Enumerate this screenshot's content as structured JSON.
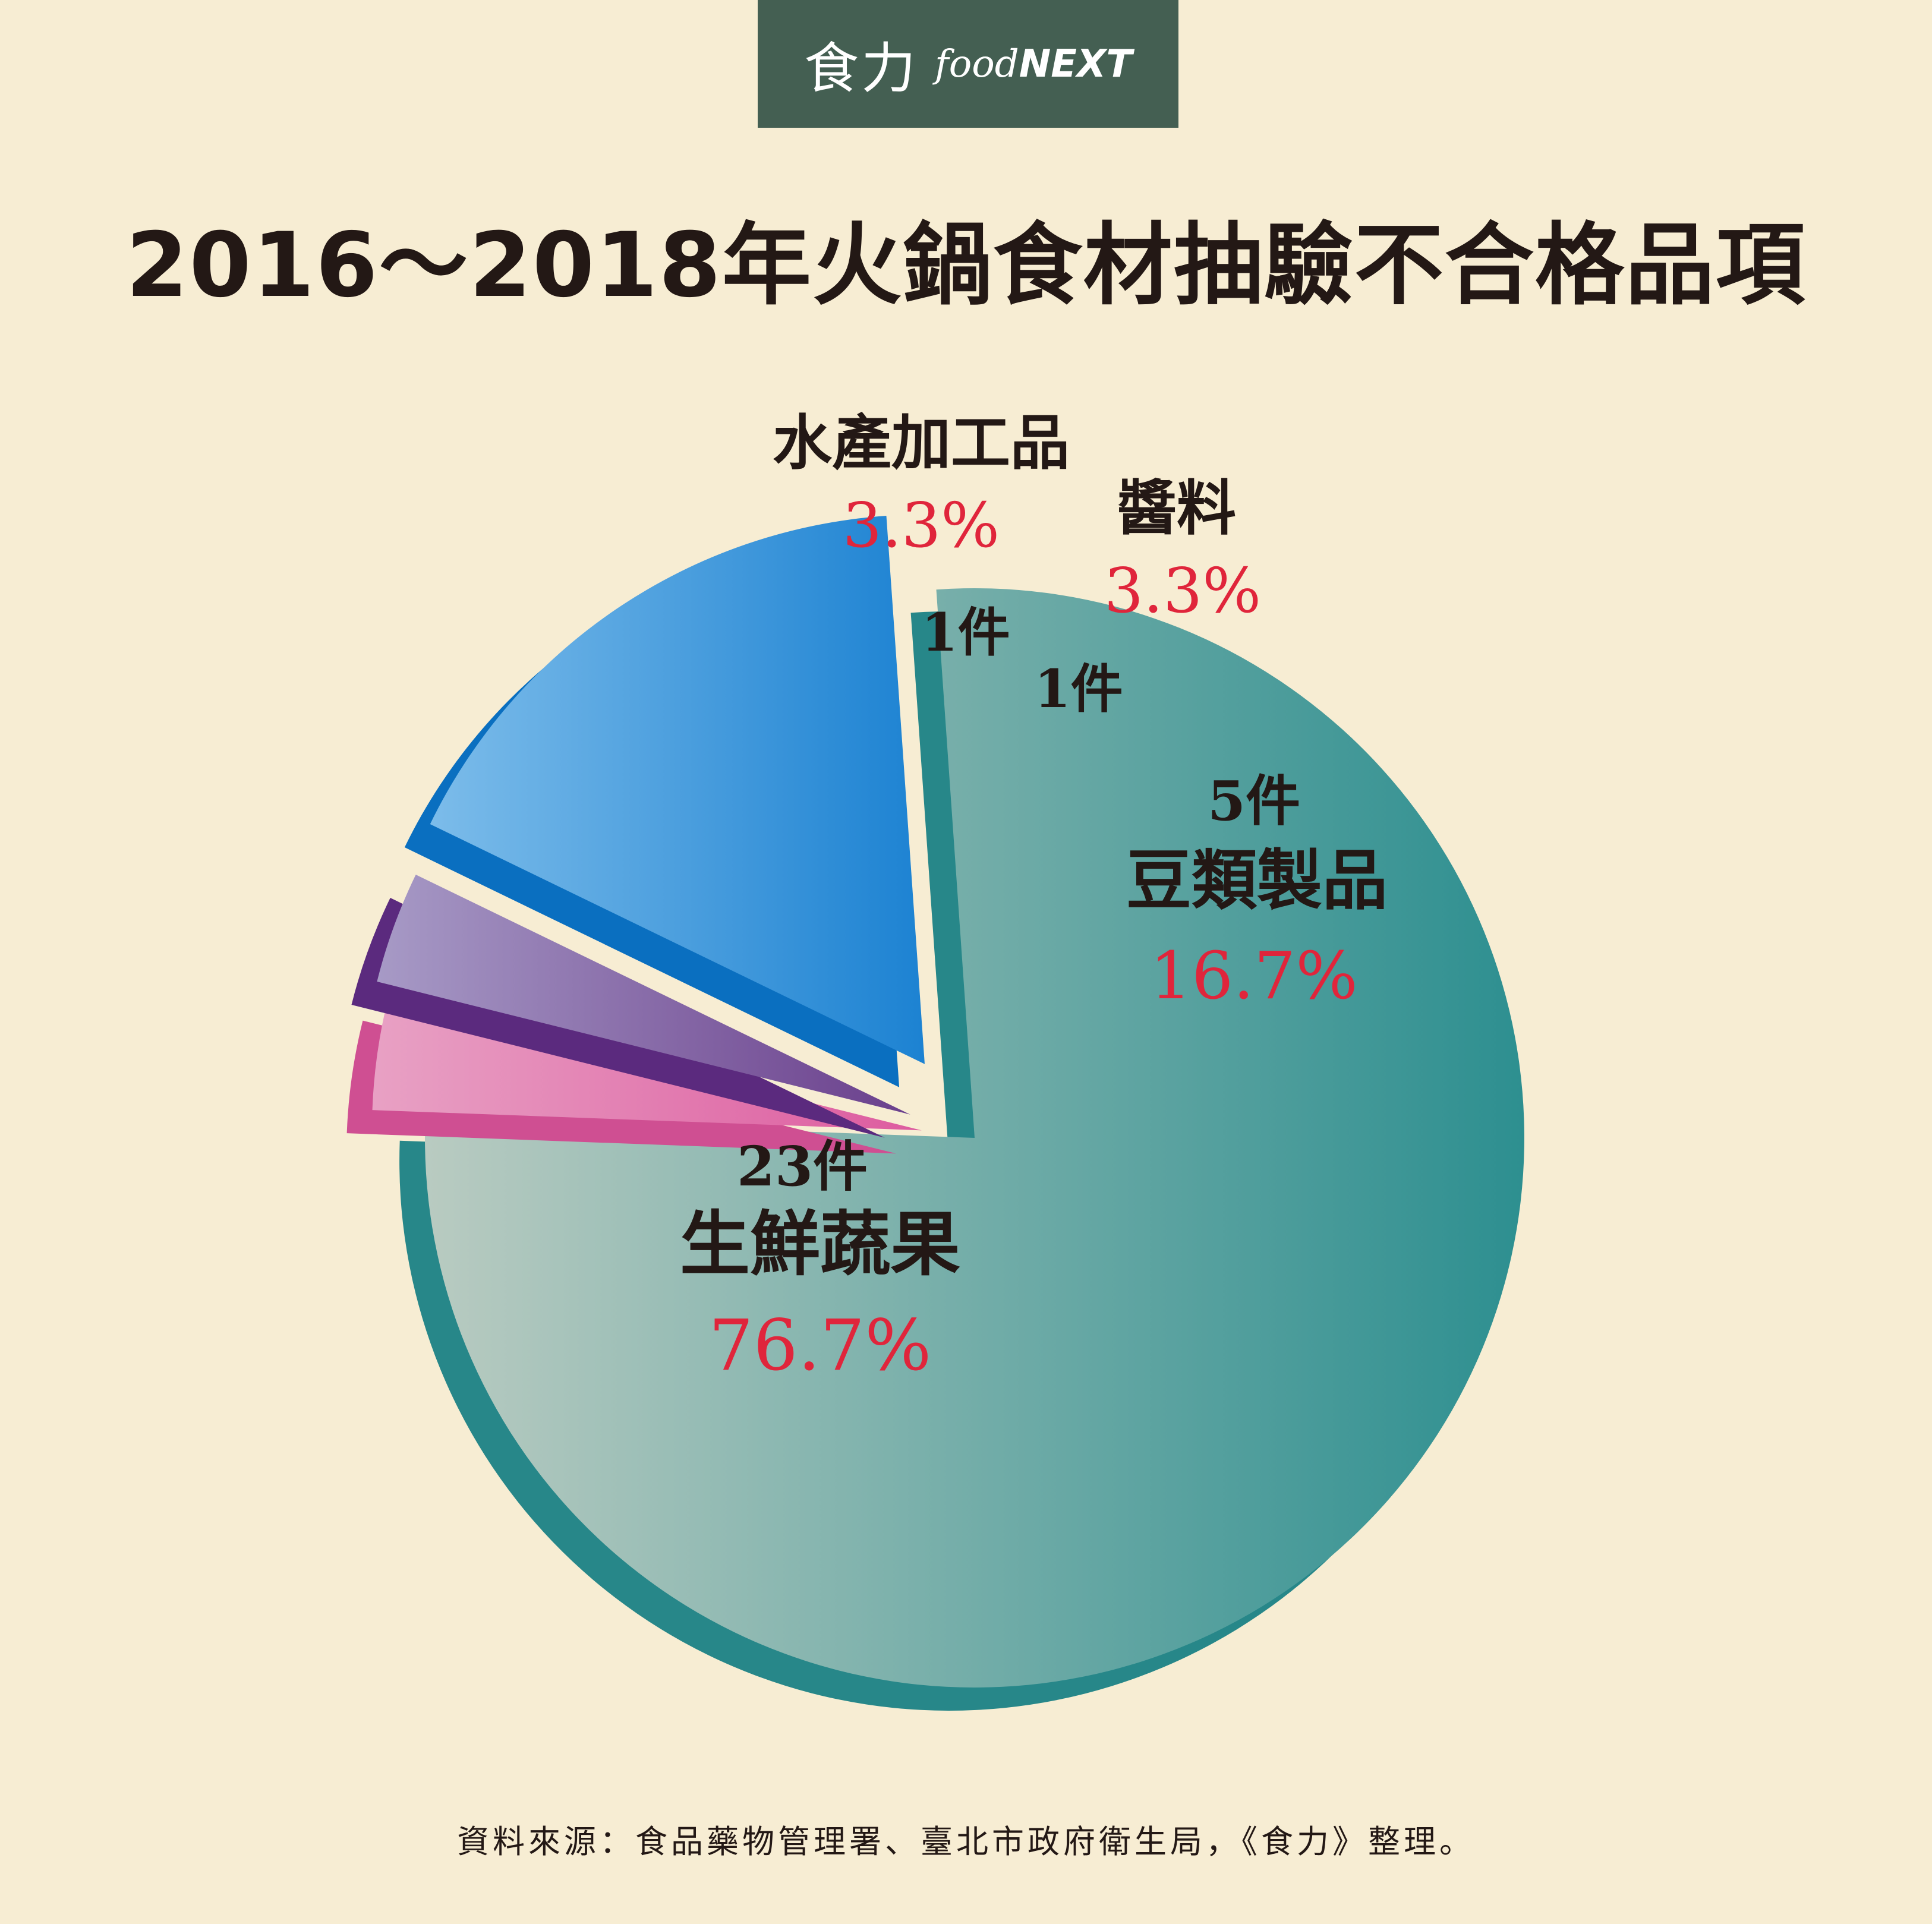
{
  "logo": {
    "cn": "食力",
    "en_prefix": "food",
    "en_suffix": "NEXT"
  },
  "title": "2016～2018年火鍋食材抽驗不合格品項",
  "chart_data": {
    "type": "pie",
    "title": "2016～2018年火鍋食材抽驗不合格品項",
    "slices": [
      {
        "name": "生鮮蔬果",
        "count": 23,
        "count_label": "23件",
        "percent": 76.7,
        "percent_label": "76.7%",
        "color_light": "#b9cbc1",
        "color_dark": "#2d8f90",
        "side_color": "#278789"
      },
      {
        "name": "水產加工品",
        "count": 1,
        "count_label": "1件",
        "percent": 3.3,
        "percent_label": "3.3%",
        "color_light": "#e8a1c4",
        "color_dark": "#dd5b9f",
        "side_color": "#cf4f92"
      },
      {
        "name": "醬料",
        "count": 1,
        "count_label": "1件",
        "percent": 3.3,
        "percent_label": "3.3%",
        "color_light": "#a79ac6",
        "color_dark": "#6a3f8c",
        "side_color": "#5b2a7e"
      },
      {
        "name": "豆類製品",
        "count": 5,
        "count_label": "5件",
        "percent": 16.7,
        "percent_label": "16.7%",
        "color_light": "#7cbcea",
        "color_dark": "#1c82d2",
        "side_color": "#0a6fc0"
      }
    ],
    "legend": "none"
  },
  "source": "資料來源：食品藥物管理署、臺北市政府衛生局，《食力》整理。"
}
